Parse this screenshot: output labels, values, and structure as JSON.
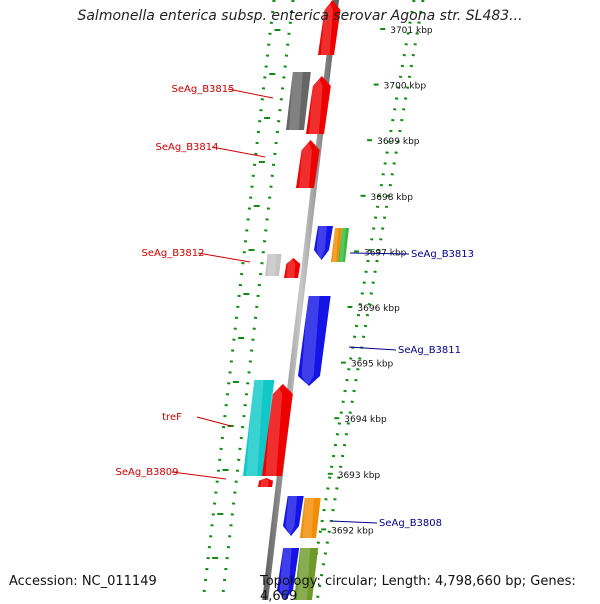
{
  "title": "Salmonella enterica subsp. enterica serovar Agona str. SL483...",
  "accession": "Accession: NC_011149",
  "topology": "Topology: circular; Length: 4,798,660 bp; Genes: 4,669",
  "colors": {
    "backbone": "#8c8c8c",
    "tick_dots": "#138a13",
    "forward_label": "#cc0000",
    "reverse_label": "#00008b",
    "red": "#ee0000",
    "blue": "#1414e6",
    "gray": "#666666",
    "lightgray": "#c4c4c4",
    "cyan": "#10c8c8",
    "orange": "#f28c00",
    "green": "#3cb83c",
    "olive": "#6e9a2a"
  },
  "scale_ticks": [
    "3701 kbp",
    "3700 kbp",
    "3699 kbp",
    "3698 kbp",
    "3697 kbp",
    "3696 kbp",
    "3695 kbp",
    "3694 kbp",
    "3693 kbp",
    "3692 kbp"
  ],
  "gene_labels": [
    {
      "text": "SeAg_B3815",
      "side": "left"
    },
    {
      "text": "SeAg_B3814",
      "side": "left"
    },
    {
      "text": "SeAg_B3812",
      "side": "left"
    },
    {
      "text": "treF",
      "side": "left"
    },
    {
      "text": "SeAg_B3809",
      "side": "left"
    },
    {
      "text": "SeAg_B3813",
      "side": "right"
    },
    {
      "text": "SeAg_B3811",
      "side": "right"
    },
    {
      "text": "SeAg_B3808",
      "side": "right"
    }
  ]
}
